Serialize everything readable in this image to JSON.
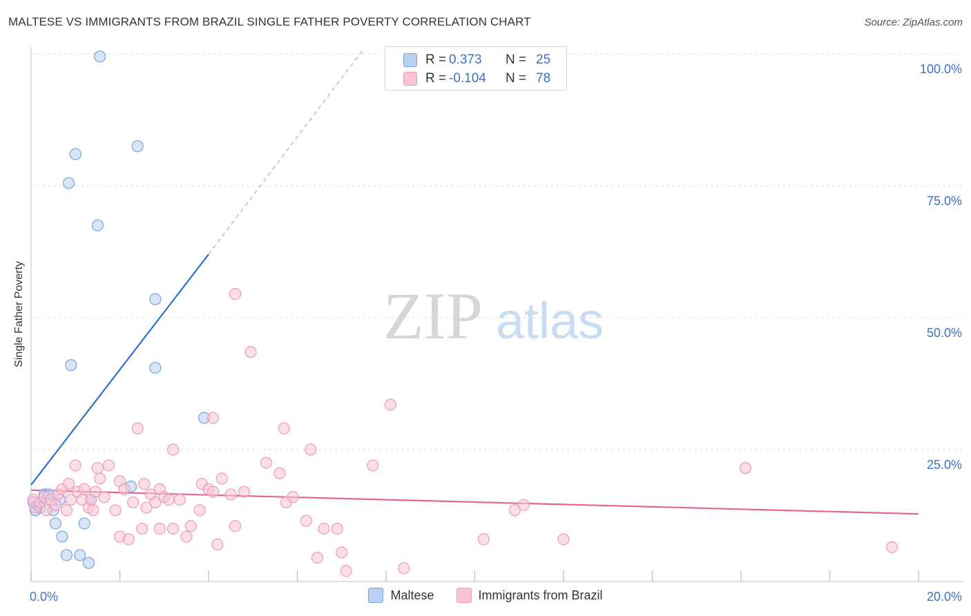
{
  "title": "MALTESE VS IMMIGRANTS FROM BRAZIL SINGLE FATHER POVERTY CORRELATION CHART",
  "source": "Source: ZipAtlas.com",
  "watermark": {
    "zip": "ZIP",
    "atlas": "atlas"
  },
  "legend": [
    {
      "r_label": "R =",
      "r_value": "0.373",
      "n_label": "N =",
      "n_value": "25",
      "fill": "#b8d0f2",
      "stroke": "#7aa3dc"
    },
    {
      "r_label": "R =",
      "r_value": "-0.104",
      "n_label": "N =",
      "n_value": "78",
      "fill": "#f8c4d4",
      "stroke": "#ee9ab5"
    }
  ],
  "bottom_legend": [
    {
      "label": "Maltese",
      "fill": "#b8d0f2",
      "stroke": "#7aa3dc"
    },
    {
      "label": "Immigrants from Brazil",
      "fill": "#f8c4d4",
      "stroke": "#ee9ab5"
    }
  ],
  "chart_data": {
    "type": "scatter",
    "title": "MALTESE VS IMMIGRANTS FROM BRAZIL SINGLE FATHER POVERTY CORRELATION CHART",
    "xlabel": "",
    "ylabel": "Single Father Poverty",
    "xlim": [
      0,
      20
    ],
    "ylim": [
      0,
      100
    ],
    "x_tick_labels": [
      "0.0%",
      "20.0%"
    ],
    "y_ticks": [
      {
        "value": 100,
        "label": "100.0%"
      },
      {
        "value": 75,
        "label": "75.0%"
      },
      {
        "value": 50,
        "label": "50.0%"
      },
      {
        "value": 25,
        "label": "25.0%"
      }
    ],
    "x_minor_ticks": [
      0,
      2,
      4,
      6,
      8,
      10,
      12,
      14,
      16,
      18,
      20
    ],
    "grid": true,
    "series": [
      {
        "name": "Maltese",
        "color": "#7aa3dc",
        "fill": "#b8d0f2",
        "line_color": "#2e6fcc",
        "trend": {
          "x0": 0,
          "y0": 18.3,
          "x1": 4.0,
          "y1": 62,
          "x_extend_to": 7.5,
          "y_extend_to": 101
        },
        "points": [
          [
            0.1,
            13.5
          ],
          [
            0.15,
            14.5
          ],
          [
            0.2,
            14.0
          ],
          [
            0.3,
            16.5
          ],
          [
            0.4,
            16.5
          ],
          [
            0.5,
            13.5
          ],
          [
            0.55,
            11.0
          ],
          [
            0.65,
            15.5
          ],
          [
            0.7,
            8.5
          ],
          [
            0.8,
            5.0
          ],
          [
            0.85,
            75.5
          ],
          [
            0.9,
            41.0
          ],
          [
            1.0,
            81.0
          ],
          [
            1.1,
            5.0
          ],
          [
            1.2,
            11.0
          ],
          [
            1.3,
            3.5
          ],
          [
            1.35,
            15.5
          ],
          [
            1.5,
            67.5
          ],
          [
            1.55,
            99.5
          ],
          [
            2.4,
            82.5
          ],
          [
            2.25,
            18.0
          ],
          [
            2.8,
            53.5
          ],
          [
            2.8,
            40.5
          ],
          [
            3.9,
            31.0
          ],
          [
            0.05,
            15.0
          ]
        ]
      },
      {
        "name": "Immigrants from Brazil",
        "color": "#ee9ab5",
        "fill": "#f8c4d4",
        "line_color": "#e06890",
        "trend": {
          "x0": 0,
          "y0": 17.3,
          "x1": 20,
          "y1": 12.8
        },
        "points": [
          [
            0.05,
            15.5
          ],
          [
            0.1,
            14.0
          ],
          [
            0.2,
            15.0
          ],
          [
            0.3,
            16.0
          ],
          [
            0.35,
            13.5
          ],
          [
            0.45,
            15.5
          ],
          [
            0.55,
            14.5
          ],
          [
            0.6,
            16.5
          ],
          [
            0.7,
            17.5
          ],
          [
            0.8,
            13.5
          ],
          [
            0.85,
            18.5
          ],
          [
            0.9,
            15.5
          ],
          [
            1.0,
            22.0
          ],
          [
            1.05,
            17.0
          ],
          [
            1.15,
            15.5
          ],
          [
            1.2,
            17.5
          ],
          [
            1.3,
            14.0
          ],
          [
            1.35,
            15.5
          ],
          [
            1.45,
            17.0
          ],
          [
            1.5,
            21.5
          ],
          [
            1.55,
            19.5
          ],
          [
            1.65,
            16.0
          ],
          [
            1.75,
            22.0
          ],
          [
            1.9,
            13.5
          ],
          [
            2.0,
            19.0
          ],
          [
            2.0,
            8.5
          ],
          [
            2.1,
            17.5
          ],
          [
            2.2,
            8.0
          ],
          [
            2.3,
            15.0
          ],
          [
            2.4,
            29.0
          ],
          [
            2.5,
            10.0
          ],
          [
            2.55,
            18.5
          ],
          [
            2.6,
            14.0
          ],
          [
            2.7,
            16.5
          ],
          [
            2.8,
            15.0
          ],
          [
            2.9,
            17.5
          ],
          [
            2.9,
            10.0
          ],
          [
            3.0,
            16.0
          ],
          [
            3.1,
            15.5
          ],
          [
            3.2,
            25.0
          ],
          [
            3.2,
            10.0
          ],
          [
            3.35,
            15.5
          ],
          [
            3.5,
            8.5
          ],
          [
            3.6,
            10.5
          ],
          [
            3.8,
            13.5
          ],
          [
            3.85,
            18.5
          ],
          [
            4.0,
            17.5
          ],
          [
            4.1,
            31.0
          ],
          [
            4.1,
            17.0
          ],
          [
            4.2,
            7.0
          ],
          [
            4.3,
            19.5
          ],
          [
            4.5,
            16.5
          ],
          [
            4.6,
            10.5
          ],
          [
            4.6,
            54.5
          ],
          [
            4.8,
            17.0
          ],
          [
            4.95,
            43.5
          ],
          [
            5.3,
            22.5
          ],
          [
            5.6,
            20.5
          ],
          [
            5.7,
            29.0
          ],
          [
            5.75,
            15.0
          ],
          [
            5.9,
            16.0
          ],
          [
            6.2,
            11.5
          ],
          [
            6.3,
            25.0
          ],
          [
            6.45,
            4.5
          ],
          [
            6.6,
            10.0
          ],
          [
            6.9,
            10.0
          ],
          [
            7.0,
            5.5
          ],
          [
            7.1,
            2.0
          ],
          [
            7.7,
            22.0
          ],
          [
            8.1,
            33.5
          ],
          [
            8.4,
            2.5
          ],
          [
            10.2,
            8.0
          ],
          [
            10.9,
            13.5
          ],
          [
            11.1,
            14.5
          ],
          [
            12.0,
            8.0
          ],
          [
            16.1,
            21.5
          ],
          [
            19.4,
            6.5
          ],
          [
            1.4,
            13.5
          ]
        ]
      }
    ]
  }
}
